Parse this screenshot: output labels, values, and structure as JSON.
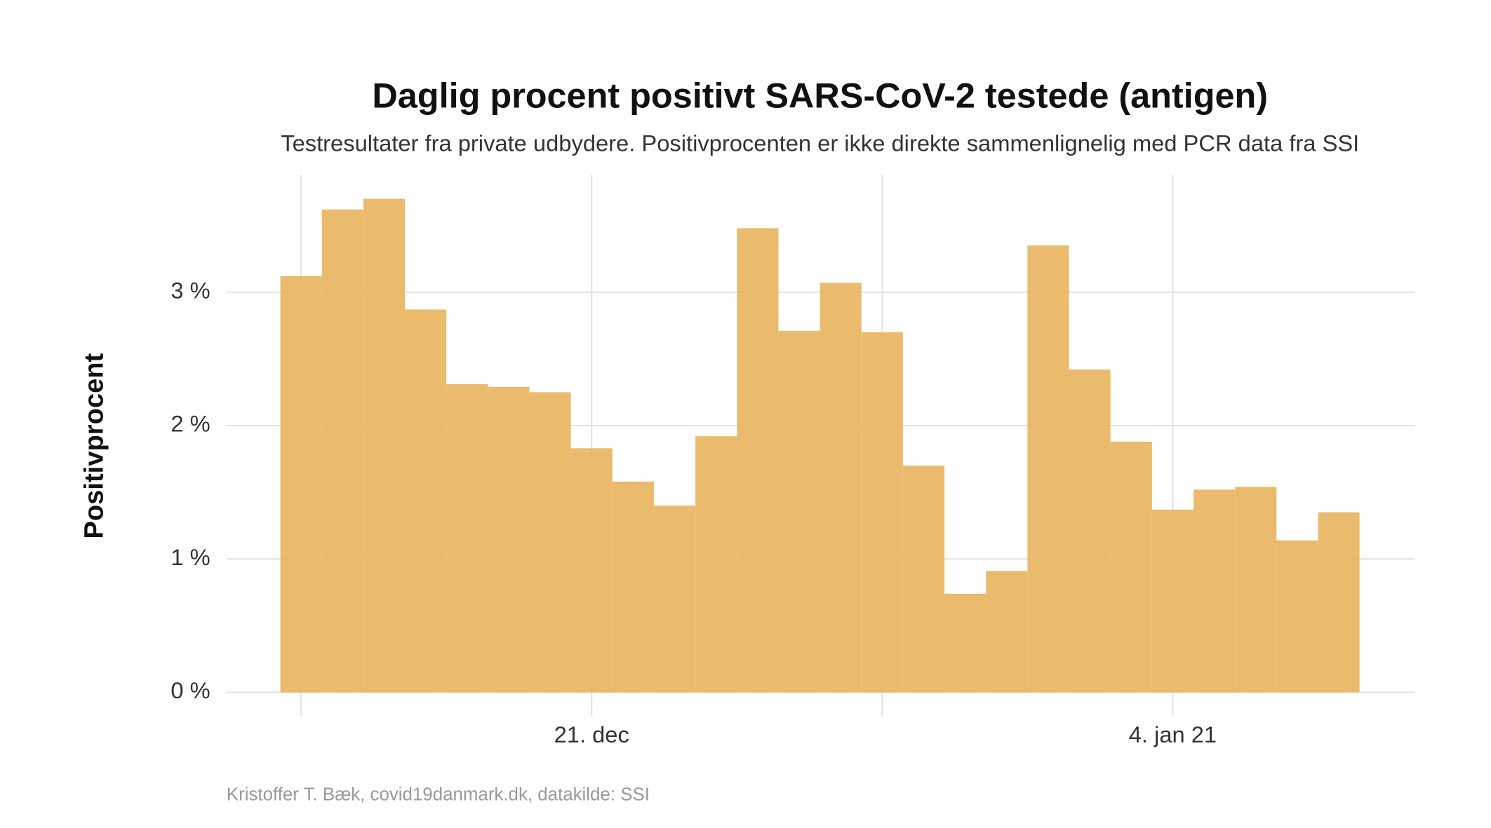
{
  "chart_data": {
    "type": "bar",
    "title": "Daglig procent positivt SARS-CoV-2 testede (antigen)",
    "subtitle": "Testresultater fra private udbydere. Positivprocenten er ikke direkte sammenlignelig med PCR data fra SSI",
    "y_label": "Positivprocent",
    "caption": "Kristoffer T. Bæk, covid19danmark.dk, datakilde: SSI",
    "categories": [
      null,
      null,
      null,
      null,
      null,
      null,
      null,
      "21. dec",
      null,
      null,
      null,
      null,
      null,
      null,
      null,
      null,
      null,
      null,
      null,
      null,
      null,
      "4. jan 21",
      null,
      null,
      null,
      null
    ],
    "values": [
      3.12,
      3.62,
      3.7,
      2.87,
      2.31,
      2.29,
      2.25,
      1.83,
      1.58,
      1.4,
      1.92,
      3.48,
      2.71,
      3.07,
      2.7,
      1.7,
      0.74,
      0.91,
      3.35,
      2.42,
      1.88,
      1.37,
      1.52,
      1.54,
      1.14,
      1.35
    ],
    "color": "#e8b45c",
    "ylim": [
      0,
      3.88
    ],
    "yticks": [
      {
        "value": 0,
        "label": "0 %"
      },
      {
        "value": 1,
        "label": "1 %"
      },
      {
        "value": 2,
        "label": "2 %"
      },
      {
        "value": 3,
        "label": "3 %"
      }
    ],
    "grid": true
  }
}
